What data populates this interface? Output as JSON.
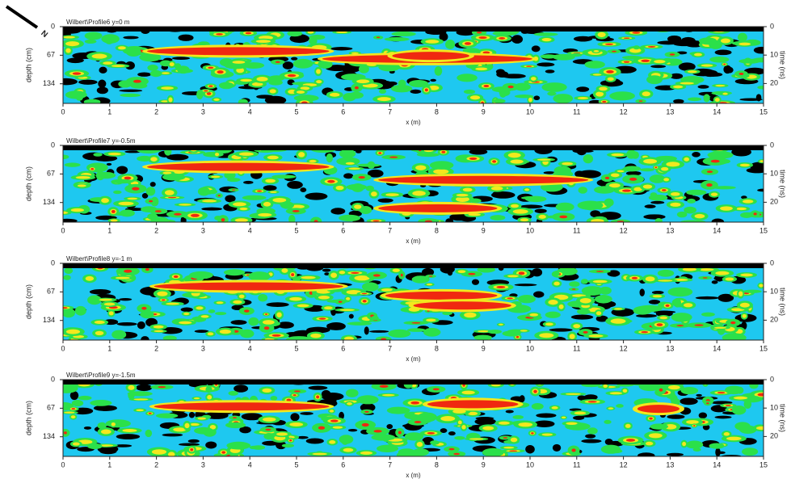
{
  "compass": "N",
  "panels": [
    {
      "title": "Wilbert\\Profile6   y=0 m",
      "xlabel": "x (m)",
      "ylabel": "depth (cm)",
      "y2label": "time (ns)",
      "xlim": [
        0,
        15
      ],
      "xticks": [
        0,
        1,
        2,
        3,
        4,
        5,
        6,
        7,
        8,
        9,
        10,
        11,
        12,
        13,
        14,
        15
      ],
      "ylim": [
        0,
        180
      ],
      "yticks": [
        0,
        67,
        134
      ],
      "y2lim": [
        0,
        27
      ],
      "y2ticks": [
        0,
        10,
        20
      ]
    },
    {
      "title": "Wilbert\\Profile7   y=-0.5m",
      "xlabel": "x (m)",
      "ylabel": "depth (cm)",
      "y2label": "time (ns)",
      "xlim": [
        0,
        15
      ],
      "xticks": [
        0,
        1,
        2,
        3,
        4,
        5,
        6,
        7,
        8,
        9,
        10,
        11,
        12,
        13,
        14,
        15
      ],
      "ylim": [
        0,
        180
      ],
      "yticks": [
        0,
        67,
        134
      ],
      "y2lim": [
        0,
        27
      ],
      "y2ticks": [
        0,
        10,
        20
      ]
    },
    {
      "title": "Wilbert\\Profile8   y=-1 m",
      "xlabel": "x (m)",
      "ylabel": "depth (cm)",
      "y2label": "time (ns)",
      "xlim": [
        0,
        15
      ],
      "xticks": [
        0,
        1,
        2,
        3,
        4,
        5,
        6,
        7,
        8,
        9,
        10,
        11,
        12,
        13,
        14,
        15
      ],
      "ylim": [
        0,
        180
      ],
      "yticks": [
        0,
        67,
        134
      ],
      "y2lim": [
        0,
        27
      ],
      "y2ticks": [
        0,
        10,
        20
      ]
    },
    {
      "title": "Wilbert\\Profile9   y=-1.5m",
      "xlabel": "x (m)",
      "ylabel": "depth (cm)",
      "y2label": "time (ns)",
      "xlim": [
        0,
        15
      ],
      "xticks": [
        0,
        1,
        2,
        3,
        4,
        5,
        6,
        7,
        8,
        9,
        10,
        11,
        12,
        13,
        14,
        15
      ],
      "ylim": [
        0,
        180
      ],
      "yticks": [
        0,
        67,
        134
      ],
      "y2lim": [
        0,
        27
      ],
      "y2ticks": [
        0,
        10,
        20
      ]
    }
  ]
}
